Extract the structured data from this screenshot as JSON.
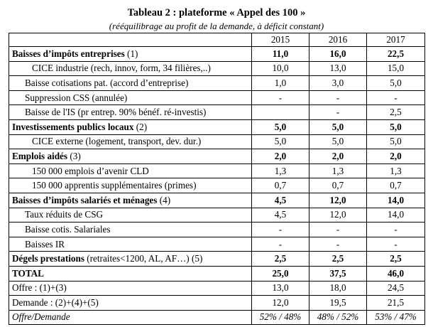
{
  "title": "Tableau 2 : plateforme « Appel des 100 »",
  "subtitle": "(rééquilibrage au profit de la demande, à déficit constant)",
  "table": {
    "years": [
      "2015",
      "2016",
      "2017"
    ],
    "rows": [
      {
        "label": "Baisses d’impôts entreprises",
        "suffix": " (1)",
        "v": [
          "11,0",
          "16,0",
          "22,5"
        ]
      },
      {
        "label": "CICE industrie (rech, innov, form, 34 filières,..)",
        "v": [
          "10,0",
          "13,0",
          "15,0"
        ]
      },
      {
        "label": "Baisse cotisations pat. (accord d’entreprise)",
        "v": [
          "1,0",
          "3,0",
          "5,0"
        ]
      },
      {
        "label": "Suppression CSS (annulée)",
        "v": [
          "-",
          "-",
          "-"
        ]
      },
      {
        "label": "Baisse de l'IS (pr entrep. 90% bénéf. ré-investis)",
        "v": [
          "",
          "-",
          "2,5"
        ]
      },
      {
        "label": "Investissements publics locaux",
        "suffix": " (2)",
        "v": [
          "5,0",
          "5,0",
          "5,0"
        ]
      },
      {
        "label": "CICE externe (logement, transport, dev. dur.)",
        "v": [
          "5,0",
          "5,0",
          "5,0"
        ]
      },
      {
        "label": "Emplois aidés",
        "suffix": " (3)",
        "v": [
          "2,0",
          "2,0",
          "2,0"
        ]
      },
      {
        "label": "150 000 emplois d’avenir CLD",
        "v": [
          "1,3",
          "1,3",
          "1,3"
        ]
      },
      {
        "label": "150 000 apprentis supplémentaires (primes)",
        "v": [
          "0,7",
          "0,7",
          "0,7"
        ]
      },
      {
        "label": "Baisses d’impôts salariés et ménages",
        "suffix": " (4)",
        "v": [
          "4,5",
          "12,0",
          "14,0"
        ]
      },
      {
        "label": "Taux réduits de CSG",
        "v": [
          "4,5",
          "12,0",
          "14,0"
        ]
      },
      {
        "label": "Baisse cotis. Salariales",
        "v": [
          "-",
          "-",
          "-"
        ]
      },
      {
        "label": "Baisses IR",
        "v": [
          "-",
          "-",
          "-"
        ]
      },
      {
        "label": "Dégels prestations",
        "suffix": " (retraites<1200, AL, AF…) (5)",
        "v": [
          "2,5",
          "2,5",
          "2,5"
        ]
      },
      {
        "label": "TOTAL",
        "v": [
          "25,0",
          "37,5",
          "46,0"
        ]
      },
      {
        "label": "Offre : (1)+(3)",
        "v": [
          "13,0",
          "18,0",
          "24,5"
        ]
      },
      {
        "label": "Demande : (2)+(4)+(5)",
        "v": [
          "12,0",
          "19,5",
          "21,5"
        ]
      },
      {
        "label": "Offre/Demande",
        "v": [
          "52% / 48%",
          "48% / 52%",
          "53% / 47%"
        ]
      }
    ]
  }
}
